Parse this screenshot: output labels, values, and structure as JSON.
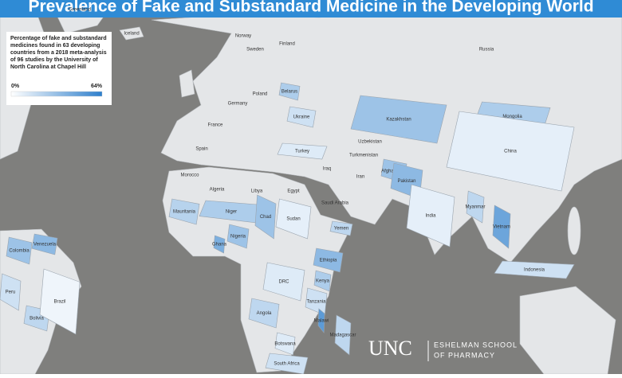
{
  "title": "Prevalence of Fake and Substandard Medicine in the Developing World",
  "legend": {
    "description": [
      "Percentage of fake and substandard",
      "medicines found in 63 developing",
      "countries from a 2018 meta-analysis",
      "of 96 studies by the University of",
      "North Carolina at Chapel Hill"
    ],
    "min": {
      "value": 0,
      "label": "0%"
    },
    "max": {
      "value": 64,
      "label": "64%"
    },
    "color_low": "#ffffff",
    "color_high": "#2e7fcc"
  },
  "countries": [
    {
      "name": "Kazakhstan",
      "value": 30
    },
    {
      "name": "Mongolia",
      "value": 25
    },
    {
      "name": "China",
      "value": 8
    },
    {
      "name": "Afghanistan",
      "value": 30
    },
    {
      "name": "Pakistan",
      "value": 35
    },
    {
      "name": "India",
      "value": 8
    },
    {
      "name": "Vietnam",
      "value": 45
    },
    {
      "name": "Myanmar",
      "value": 20
    },
    {
      "name": "Turkey",
      "value": 10
    },
    {
      "name": "Niger",
      "value": 25
    },
    {
      "name": "Mauritania",
      "value": 22
    },
    {
      "name": "Nigeria",
      "value": 30
    },
    {
      "name": "Ghana",
      "value": 40
    },
    {
      "name": "Chad",
      "value": 30
    },
    {
      "name": "Sudan",
      "value": 8
    },
    {
      "name": "Ethiopia",
      "value": 35
    },
    {
      "name": "Kenya",
      "value": 25
    },
    {
      "name": "Tanzania",
      "value": 15
    },
    {
      "name": "Malawi",
      "value": 50
    },
    {
      "name": "Angola",
      "value": 20
    },
    {
      "name": "DRC",
      "value": 10
    },
    {
      "name": "Botswana",
      "value": 10
    },
    {
      "name": "South Africa",
      "value": 15
    },
    {
      "name": "Madagascar",
      "value": 20
    },
    {
      "name": "Colombia",
      "value": 30
    },
    {
      "name": "Venezuela",
      "value": 35
    },
    {
      "name": "Peru",
      "value": 15
    },
    {
      "name": "Bolivia",
      "value": 20
    },
    {
      "name": "Brazil",
      "value": 5
    },
    {
      "name": "Belarus",
      "value": 25
    },
    {
      "name": "Ukraine",
      "value": 15
    },
    {
      "name": "Yemen",
      "value": 20
    },
    {
      "name": "Indonesia",
      "value": 15
    }
  ],
  "map_labels": [
    "Russia",
    "Algeria",
    "Libya",
    "Egypt",
    "Iran",
    "Iraq",
    "Saudi Arabia",
    "Morocco",
    "Spain",
    "France",
    "Germany",
    "Poland",
    "Sweden",
    "Finland",
    "Norway",
    "Uzbekistan",
    "Turkmenistan",
    "Greenland",
    "Iceland"
  ],
  "logo": {
    "name": "UNC",
    "school": [
      "ESHELMAN SCHOOL",
      "OF PHARMACY"
    ]
  }
}
